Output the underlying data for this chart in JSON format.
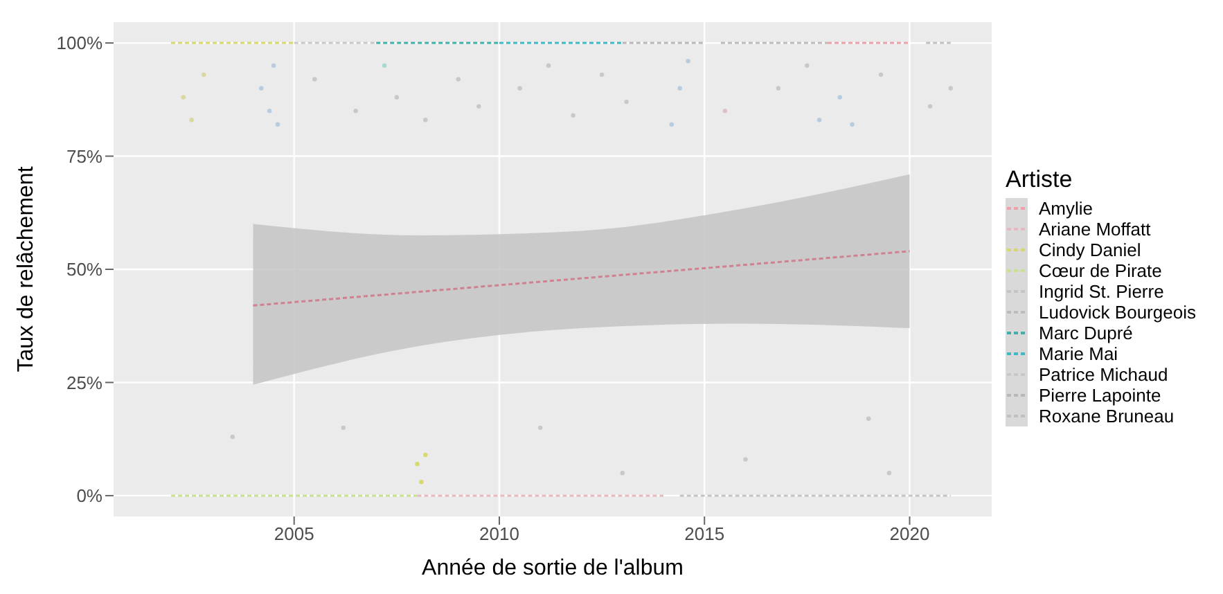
{
  "chart_data": {
    "type": "scatter",
    "xlabel": "Année de sortie de l'album",
    "ylabel": "Taux de relâchement",
    "legend_title": "Artiste",
    "legend": "right",
    "grid": true,
    "line_style": "dashed",
    "xlim": [
      2000.6,
      2022
    ],
    "xticks": [
      2005,
      2010,
      2015,
      2020
    ],
    "ylim": [
      -0.046,
      1.046
    ],
    "yticks": [
      {
        "value": 0,
        "label": "0%"
      },
      {
        "value": 0.25,
        "label": "25%"
      },
      {
        "value": 0.5,
        "label": "50%"
      },
      {
        "value": 0.75,
        "label": "75%"
      },
      {
        "value": 1,
        "label": "100%"
      }
    ],
    "series": [
      {
        "name": "Amylie",
        "type": "line",
        "color": "#f0a0a8",
        "x": [
          2018,
          2020
        ],
        "values": [
          1,
          1
        ]
      },
      {
        "name": "Ariane Moffatt",
        "type": "line",
        "color": "#e8b8c0",
        "x": [
          2008,
          2014
        ],
        "values": [
          0,
          0
        ]
      },
      {
        "name": "Cindy Daniel",
        "type": "line",
        "color": "#d8d870",
        "x": [
          2002,
          2005
        ],
        "values": [
          1,
          1
        ]
      },
      {
        "name": "Cœur de Pirate",
        "type": "line",
        "color": "#c8e090",
        "x": [
          2002,
          2008
        ],
        "values": [
          0,
          0
        ]
      },
      {
        "name": "Ingrid St. Pierre",
        "type": "line",
        "color": "#c4c4c4",
        "x": [
          2014.4,
          2021
        ],
        "values": [
          0,
          0
        ]
      },
      {
        "name": "Ludovick Bourgeois",
        "type": "line",
        "color": "#bcbcbc",
        "x": [
          2015.4,
          2018
        ],
        "values": [
          1,
          1
        ]
      },
      {
        "name": "Marc Dupré",
        "type": "line",
        "color": "#40b0a8",
        "x": [
          2007,
          2010
        ],
        "values": [
          1,
          1
        ]
      },
      {
        "name": "Marie Mai",
        "type": "line",
        "color": "#40b8c8",
        "x": [
          2010,
          2013
        ],
        "values": [
          1,
          1
        ]
      },
      {
        "name": "Patrice Michaud",
        "type": "line",
        "color": "#c8c8c8",
        "x": [
          2005,
          2007
        ],
        "values": [
          1,
          1
        ]
      },
      {
        "name": "Pierre Lapointe",
        "type": "line",
        "color": "#b8b8b8",
        "x": [
          2013,
          2015
        ],
        "values": [
          1,
          1
        ]
      },
      {
        "name": "Roxane Bruneau",
        "type": "line",
        "color": "#c0c0c0",
        "x": [
          2020.4,
          2021
        ],
        "values": [
          1,
          1
        ]
      },
      {
        "type": "line",
        "color": "#d08090",
        "x": [
          2004,
          2008,
          2012,
          2016,
          2020
        ],
        "values": [
          0.42,
          0.45,
          0.48,
          0.51,
          0.54
        ],
        "lower": [
          0.245,
          0.33,
          0.37,
          0.38,
          0.37
        ],
        "upper": [
          0.6,
          0.575,
          0.585,
          0.635,
          0.71
        ]
      },
      {
        "marker": "circle",
        "x": [
          2002.3,
          2002.5,
          2002.8,
          2004.2,
          2004.4,
          2004.6,
          2004.5,
          2005.5,
          2006.5,
          2007.2,
          2007.5,
          2008.2,
          2009.0,
          2009.5,
          2010.5,
          2011.2,
          2011.8,
          2012.5,
          2013.1,
          2014.2,
          2014.4,
          2014.6,
          2015.5,
          2016.8,
          2017.5,
          2017.8,
          2018.3,
          2018.6,
          2019.3,
          2020.5,
          2021,
          2003.5,
          2006.2,
          2008.0,
          2008.1,
          2008.2,
          2011.0,
          2013,
          2016,
          2019,
          2019.5
        ],
        "values": [
          0.88,
          0.83,
          0.93,
          0.9,
          0.85,
          0.82,
          0.95,
          0.92,
          0.85,
          0.95,
          0.88,
          0.83,
          0.92,
          0.86,
          0.9,
          0.95,
          0.84,
          0.93,
          0.87,
          0.82,
          0.9,
          0.96,
          0.85,
          0.9,
          0.95,
          0.83,
          0.88,
          0.82,
          0.93,
          0.86,
          0.9,
          0.13,
          0.15,
          0.07,
          0.03,
          0.09,
          0.15,
          0.05,
          0.08,
          0.17,
          0.05
        ],
        "colors": [
          "#d8d8a0",
          "#d8d8a0",
          "#d8d8a0",
          "#b8cce0",
          "#b8cce0",
          "#b8cce0",
          "#b8cce0",
          "#c8c8c8",
          "#c8c8c8",
          "#a8d8d0",
          "#c8c8c8",
          "#c8c8c8",
          "#c8c8c8",
          "#c8c8c8",
          "#c8c8c8",
          "#c8c8c8",
          "#c8c8c8",
          "#c8c8c8",
          "#c8c8c8",
          "#b8cce0",
          "#b8cce0",
          "#b8cce0",
          "#e0c0c8",
          "#c8c8c8",
          "#c8c8c8",
          "#b8cce0",
          "#b8cce0",
          "#b8cce0",
          "#c8c8c8",
          "#c8c8c8",
          "#c8c8c8",
          "#c8c8c8",
          "#c8c8c8",
          "#d8d870",
          "#d8d870",
          "#d8d870",
          "#c8c8c8",
          "#c8c8c8",
          "#c8c8c8",
          "#c8c8c8",
          "#c8c8c8"
        ]
      }
    ]
  }
}
